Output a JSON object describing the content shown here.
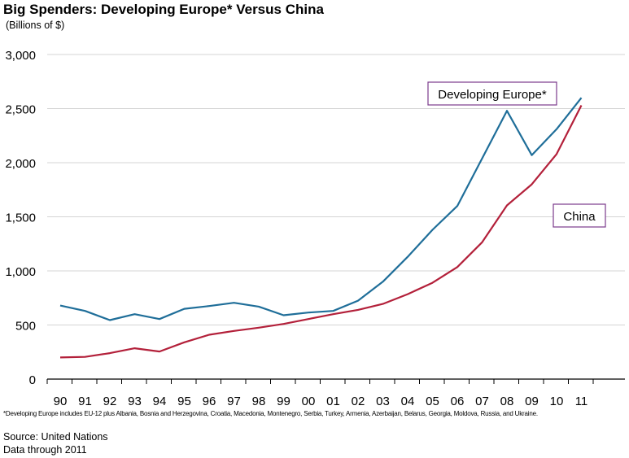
{
  "header": {
    "title": "Big Spenders: Developing Europe* Versus China",
    "subtitle": "(Billions of $)"
  },
  "footer": {
    "footnote": "*Developing Europe includes EU-12 plus Albania, Bosnia and Herzegovina, Croatia, Macedonia, Montenegro, Serbia, Turkey, Armenia, Azerbaijan, Belarus, Georgia, Moldova, Russia, and Ukraine.",
    "source": "Source: United Nations",
    "data_through": "Data through 2011"
  },
  "colors": {
    "developing_europe": "#1f6e99",
    "china": "#b3203a",
    "label_border": "#7b3b8c",
    "grid": "#d4d4d4",
    "axis": "#000000"
  },
  "chart_data": {
    "type": "line",
    "title": "Big Spenders: Developing Europe* Versus China",
    "subtitle": "(Billions of $)",
    "xlabel": "",
    "ylabel": "",
    "x": [
      "90",
      "91",
      "92",
      "93",
      "94",
      "95",
      "96",
      "97",
      "98",
      "99",
      "00",
      "01",
      "02",
      "03",
      "04",
      "05",
      "06",
      "07",
      "08",
      "09",
      "10",
      "11"
    ],
    "ylim": [
      0,
      3000
    ],
    "yticks": [
      0,
      500,
      1000,
      1500,
      2000,
      2500,
      3000
    ],
    "ytick_labels": [
      "0",
      "500",
      "1,000",
      "1,500",
      "2,000",
      "2,500",
      "3,000"
    ],
    "grid": "horizontal",
    "series": [
      {
        "name": "Developing Europe*",
        "color": "#1f6e99",
        "values": [
          680,
          630,
          545,
          600,
          555,
          650,
          675,
          705,
          670,
          590,
          615,
          630,
          725,
          900,
          1130,
          1380,
          1600,
          2040,
          2480,
          2070,
          2310,
          2600
        ]
      },
      {
        "name": "China",
        "color": "#b3203a",
        "values": [
          200,
          205,
          240,
          285,
          255,
          340,
          410,
          445,
          475,
          510,
          555,
          600,
          640,
          695,
          785,
          890,
          1035,
          1265,
          1605,
          1800,
          2080,
          2530
        ]
      }
    ]
  }
}
